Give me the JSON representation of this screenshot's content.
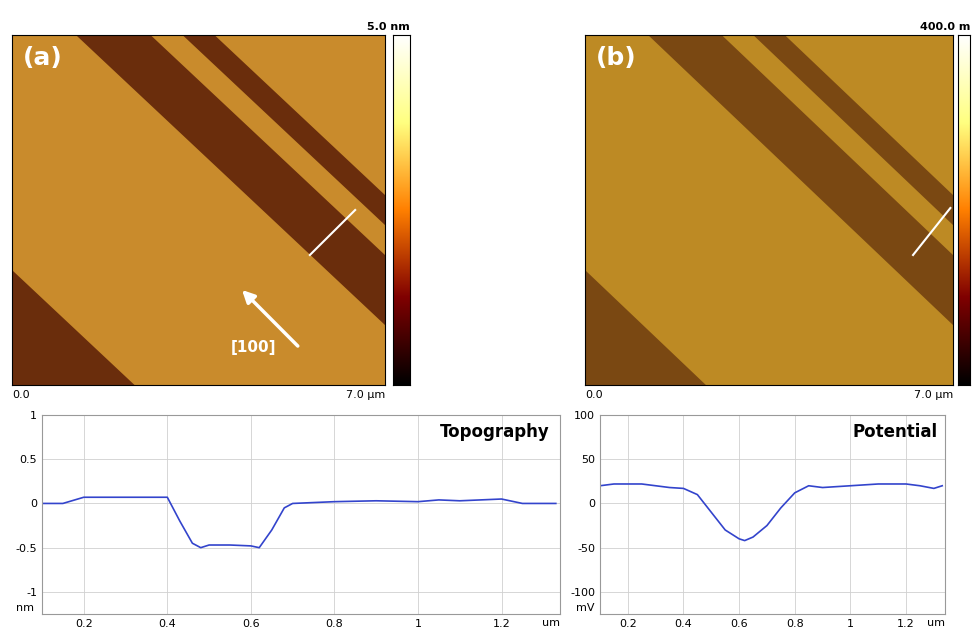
{
  "chart_data": [
    {
      "type": "image",
      "title": "(a)",
      "colorbar_label": "5.0 nm",
      "xlim": [
        0,
        7
      ],
      "xticks": [
        {
          "value": 0,
          "label": "0.0"
        },
        {
          "value": 7,
          "label": "7.0 µm"
        }
      ],
      "tick_labels": "x",
      "annotations": [
        "[100]"
      ]
    },
    {
      "type": "image",
      "title": "(b)",
      "colorbar_label": "400.0 m",
      "xlim": [
        0,
        7
      ],
      "xticks": [
        {
          "value": 0,
          "label": "0.0"
        },
        {
          "value": 7,
          "label": "7.0 µm"
        }
      ],
      "tick_labels": "x"
    },
    {
      "type": "line",
      "title": "Topography",
      "x_label": "um",
      "y_label": "nm",
      "color": "#3344cc",
      "x": [
        0.1,
        0.15,
        0.2,
        0.25,
        0.3,
        0.35,
        0.4,
        0.43,
        0.46,
        0.48,
        0.5,
        0.55,
        0.6,
        0.62,
        0.65,
        0.68,
        0.7,
        0.8,
        0.9,
        1.0,
        1.05,
        1.1,
        1.15,
        1.2,
        1.25,
        1.3,
        1.33
      ],
      "values": [
        0,
        0,
        0.07,
        0.07,
        0.07,
        0.07,
        0.07,
        -0.2,
        -0.45,
        -0.5,
        -0.47,
        -0.47,
        -0.48,
        -0.5,
        -0.3,
        -0.05,
        0,
        0.02,
        0.03,
        0.02,
        0.04,
        0.03,
        0.04,
        0.05,
        0,
        0,
        0
      ],
      "xlim": [
        0.1,
        1.34
      ],
      "ylim": [
        -1.25,
        1
      ],
      "xticks": [
        0.2,
        0.4,
        0.6,
        0.8,
        1,
        1.2
      ],
      "yticks": [
        -1,
        -0.5,
        0,
        0.5,
        1
      ],
      "grid": true
    },
    {
      "type": "line",
      "title": "Potential",
      "x_label": "um",
      "y_label": "mV",
      "color": "#3344cc",
      "x": [
        0.1,
        0.15,
        0.2,
        0.25,
        0.3,
        0.35,
        0.4,
        0.45,
        0.5,
        0.55,
        0.6,
        0.62,
        0.65,
        0.7,
        0.75,
        0.8,
        0.85,
        0.9,
        1.0,
        1.1,
        1.2,
        1.25,
        1.3,
        1.33
      ],
      "values": [
        20,
        22,
        22,
        22,
        20,
        18,
        17,
        10,
        -10,
        -30,
        -40,
        -42,
        -38,
        -25,
        -5,
        12,
        20,
        18,
        20,
        22,
        22,
        20,
        17,
        20
      ],
      "xlim": [
        0.1,
        1.34
      ],
      "ylim": [
        -125,
        100
      ],
      "xticks": [
        0.2,
        0.4,
        0.6,
        0.8,
        1,
        1.2
      ],
      "yticks": [
        -100,
        -50,
        0,
        50,
        100
      ],
      "grid": true
    }
  ]
}
